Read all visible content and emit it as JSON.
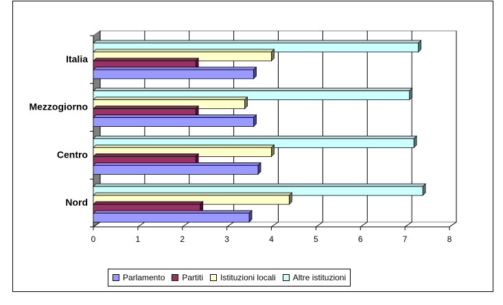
{
  "chart_data": {
    "type": "bar",
    "orientation": "horizontal",
    "categories": [
      "Nord",
      "Centro",
      "Mezzogiorno",
      "Italia"
    ],
    "series": [
      {
        "name": "Parlamento",
        "values": [
          3.5,
          3.7,
          3.6,
          3.6
        ],
        "color": "#9999ff"
      },
      {
        "name": "Partiti",
        "values": [
          2.4,
          2.3,
          2.3,
          2.3
        ],
        "color": "#993366"
      },
      {
        "name": "Istituzioni locali",
        "values": [
          4.4,
          4.0,
          3.4,
          4.0
        ],
        "color": "#ffffcc"
      },
      {
        "name": "Altre istituzioni",
        "values": [
          7.4,
          7.2,
          7.1,
          7.3
        ],
        "color": "#ccffff"
      }
    ],
    "xlim": [
      0,
      8
    ],
    "xticks": [
      "0",
      "1",
      "2",
      "3",
      "4",
      "5",
      "6",
      "7",
      "8"
    ],
    "grid": true,
    "legend_position": "bottom"
  }
}
